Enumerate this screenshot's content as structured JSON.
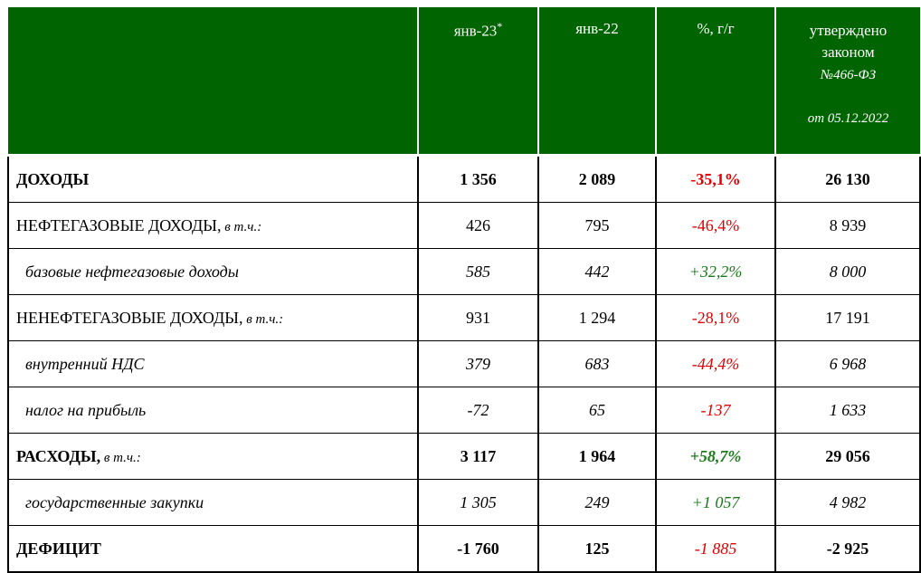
{
  "header": {
    "col1": "янв-23",
    "col1_mark": "*",
    "col2": "янв-22",
    "col3": "%, г/г",
    "col4_line1": "утверждено",
    "col4_line2": "законом",
    "col4_line3": "№466-ФЗ",
    "col4_line4": "от 05.12.2022"
  },
  "rows": [
    {
      "label": "ДОХОДЫ",
      "note": "",
      "v1": "1 356",
      "v2": "2 089",
      "pct": "-35,1%",
      "v4": "26 130"
    },
    {
      "label": "НЕФТЕГАЗОВЫЕ ДОХОДЫ,",
      "note": " в т.ч.:",
      "v1": "426",
      "v2": "795",
      "pct": "-46,4%",
      "v4": "8 939"
    },
    {
      "label": "базовые нефтегазовые доходы",
      "note": "",
      "v1": "585",
      "v2": "442",
      "pct": "+32,2%",
      "v4": "8 000"
    },
    {
      "label": "НЕНЕФТЕГАЗОВЫЕ ДОХОДЫ,",
      "note": " в т.ч.:",
      "v1": "931",
      "v2": "1 294",
      "pct": "-28,1%",
      "v4": "17 191"
    },
    {
      "label": "внутренний НДС",
      "note": "",
      "v1": "379",
      "v2": "683",
      "pct": "-44,4%",
      "v4": "6 968"
    },
    {
      "label": "налог на прибыль",
      "note": "",
      "v1": "-72",
      "v2": "65",
      "pct": "-137",
      "v4": "1 633"
    },
    {
      "label": "РАСХОДЫ,",
      "note": " в т.ч.:",
      "v1": "3 117",
      "v2": "1 964",
      "pct": "+58,7%",
      "v4": "29 056"
    },
    {
      "label": "государственные закупки",
      "note": "",
      "v1": "1 305",
      "v2": "249",
      "pct": "+1 057",
      "v4": "4 982"
    },
    {
      "label": "ДЕФИЦИТ",
      "note": "",
      "v1": "-1 760",
      "v2": "125",
      "pct": "-1 885",
      "v4": "-2 925"
    }
  ],
  "colors": {
    "header_bg": "#006400",
    "negative": "#e00000",
    "positive": "#1a7a1a"
  }
}
